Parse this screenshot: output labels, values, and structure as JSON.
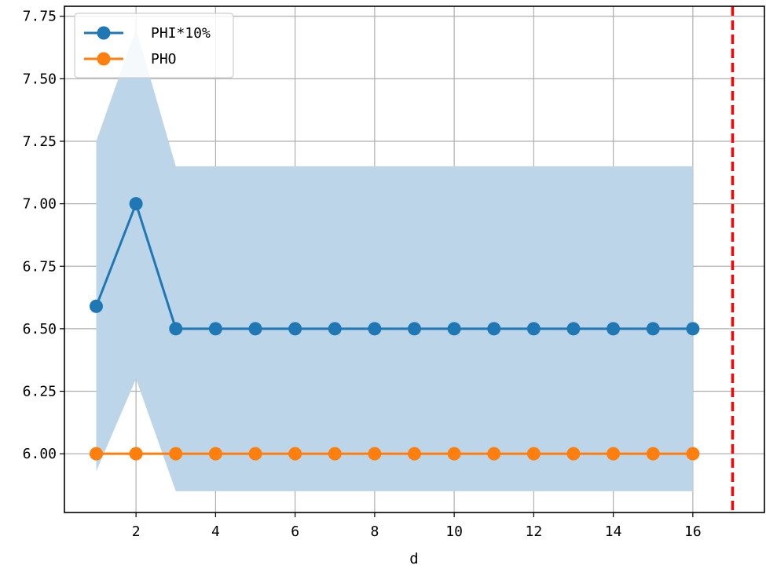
{
  "chart_data": {
    "type": "line",
    "title": "",
    "xlabel": "d",
    "ylabel": "",
    "xlim": [
      0.2,
      17.8
    ],
    "ylim": [
      5.765,
      7.79
    ],
    "x_ticks": [
      2,
      4,
      6,
      8,
      10,
      12,
      14,
      16
    ],
    "y_ticks": [
      6.0,
      6.25,
      6.5,
      6.75,
      7.0,
      7.25,
      7.5,
      7.75
    ],
    "y_tick_labels": [
      "6.00",
      "6.25",
      "6.50",
      "6.75",
      "7.00",
      "7.25",
      "7.50",
      "7.75"
    ],
    "grid": true,
    "legend_position": "top-left",
    "x": [
      1,
      2,
      3,
      4,
      5,
      6,
      7,
      8,
      9,
      10,
      11,
      12,
      13,
      14,
      15,
      16
    ],
    "series": [
      {
        "name": "PHI*10%",
        "color": "#1f77b4",
        "values": [
          6.59,
          7.0,
          6.5,
          6.5,
          6.5,
          6.5,
          6.5,
          6.5,
          6.5,
          6.5,
          6.5,
          6.5,
          6.5,
          6.5,
          6.5,
          6.5
        ],
        "band_upper": [
          7.25,
          7.7,
          7.15,
          7.15,
          7.15,
          7.15,
          7.15,
          7.15,
          7.15,
          7.15,
          7.15,
          7.15,
          7.15,
          7.15,
          7.15,
          7.15
        ],
        "band_lower": [
          5.93,
          6.3,
          5.85,
          5.85,
          5.85,
          5.85,
          5.85,
          5.85,
          5.85,
          5.85,
          5.85,
          5.85,
          5.85,
          5.85,
          5.85,
          5.85
        ],
        "band_color": "#bcd5e8"
      },
      {
        "name": "PHO",
        "color": "#ff7f0e",
        "values": [
          6.0,
          6.0,
          6.0,
          6.0,
          6.0,
          6.0,
          6.0,
          6.0,
          6.0,
          6.0,
          6.0,
          6.0,
          6.0,
          6.0,
          6.0,
          6.0
        ]
      }
    ],
    "vertical_line": {
      "x": 17,
      "color": "#ff0000",
      "style": "dashed"
    }
  }
}
